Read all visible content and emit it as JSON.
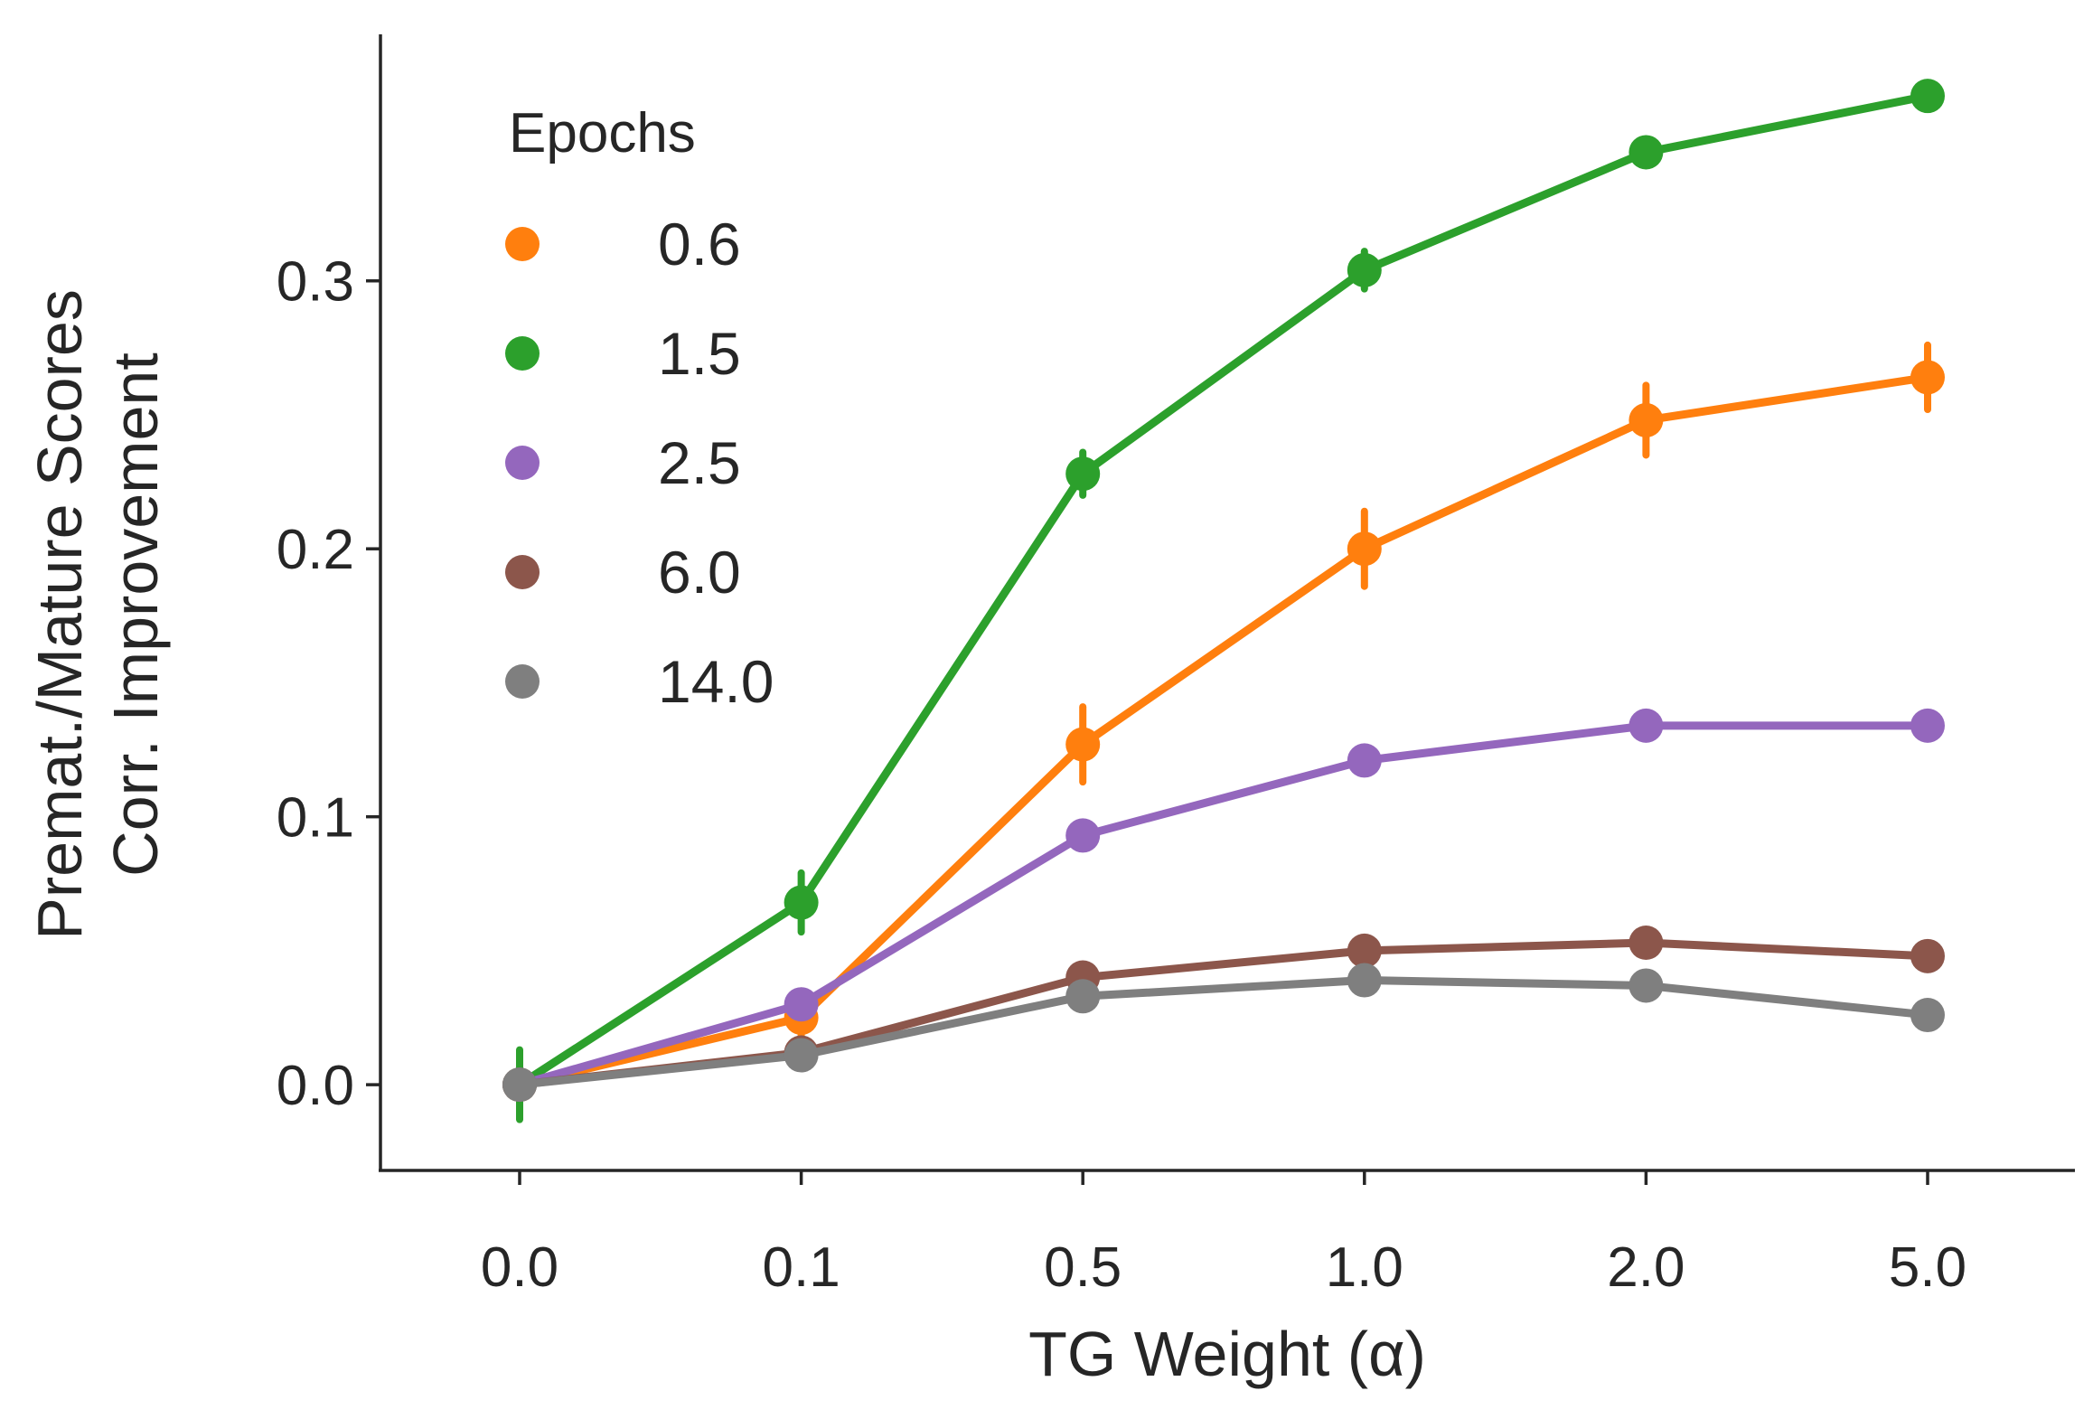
{
  "chart_data": {
    "type": "line",
    "xlabel": "TG Weight (α)",
    "ylabel_lines": [
      "Premat./Mature Scores",
      "Corr. Improvement"
    ],
    "categories": [
      "0.0",
      "0.1",
      "0.5",
      "1.0",
      "2.0",
      "5.0"
    ],
    "ylim": [
      -0.032,
      0.392
    ],
    "yticks": [
      0.0,
      0.1,
      0.2,
      0.3
    ],
    "ytick_labels": [
      "0.0",
      "0.1",
      "0.2",
      "0.3"
    ],
    "grid": false,
    "legend": {
      "title": "Epochs",
      "position": "top-left"
    },
    "series": [
      {
        "name": "0.6",
        "color": "#ff7f0e",
        "values": [
          0.0,
          0.025,
          0.127,
          0.2,
          0.248,
          0.264
        ],
        "errors": [
          0.0,
          0.01,
          0.014,
          0.014,
          0.013,
          0.012
        ]
      },
      {
        "name": "1.5",
        "color": "#2ca02c",
        "values": [
          0.0,
          0.068,
          0.228,
          0.304,
          0.348,
          0.369
        ],
        "errors": [
          0.013,
          0.011,
          0.008,
          0.007,
          0.005,
          0.004
        ]
      },
      {
        "name": "2.5",
        "color": "#9467bd",
        "values": [
          0.0,
          0.03,
          0.093,
          0.121,
          0.134,
          0.134
        ],
        "errors": [
          0.003,
          0.003,
          0.002,
          0.002,
          0.002,
          0.002
        ]
      },
      {
        "name": "6.0",
        "color": "#8c564b",
        "values": [
          0.0,
          0.012,
          0.04,
          0.05,
          0.053,
          0.048
        ],
        "errors": [
          0.0,
          0.0,
          0.0,
          0.0,
          0.0,
          0.0
        ]
      },
      {
        "name": "14.0",
        "color": "#7f7f7f",
        "values": [
          0.0,
          0.011,
          0.033,
          0.039,
          0.037,
          0.026
        ],
        "errors": [
          0.0,
          0.0,
          0.0,
          0.0,
          0.0,
          0.0
        ]
      }
    ]
  }
}
